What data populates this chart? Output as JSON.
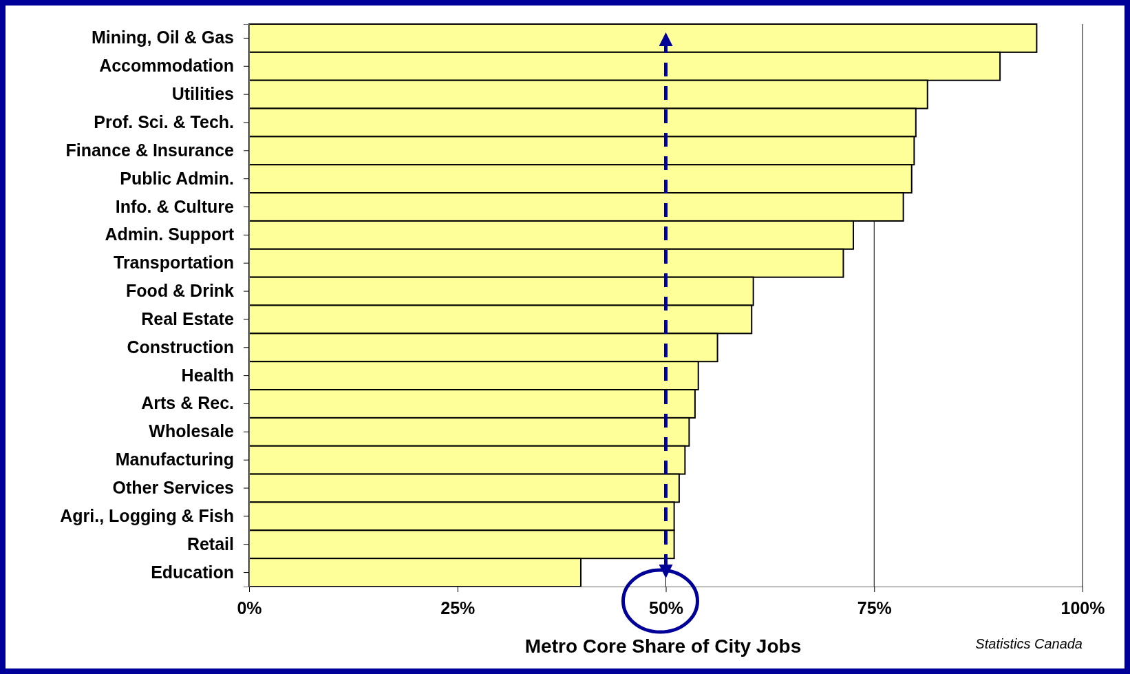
{
  "chart_data": {
    "type": "bar",
    "orientation": "horizontal",
    "xlabel": "Metro Core Share of City Jobs",
    "categories": [
      "Mining, Oil & Gas",
      "Accommodation",
      "Utilities",
      "Prof. Sci. & Tech.",
      "Finance & Insurance",
      "Public Admin.",
      "Info. & Culture",
      "Admin. Support",
      "Transportation",
      "Food & Drink",
      "Real Estate",
      "Construction",
      "Health",
      "Arts & Rec.",
      "Wholesale",
      "Manufacturing",
      "Other Services",
      "Agri., Logging & Fish",
      "Retail",
      "Education"
    ],
    "values": [
      94.5,
      90.1,
      81.4,
      80.0,
      79.8,
      79.5,
      78.5,
      72.5,
      71.3,
      60.5,
      60.3,
      56.2,
      53.9,
      53.5,
      52.8,
      52.3,
      51.6,
      51.0,
      51.0,
      39.8
    ],
    "color": "#ffff99",
    "xlim": [
      0,
      100
    ],
    "xticks": [
      {
        "value": 0,
        "label": "0%"
      },
      {
        "value": 25,
        "label": "25%"
      },
      {
        "value": 50,
        "label": "50%"
      },
      {
        "value": 75,
        "label": "75%"
      },
      {
        "value": 100,
        "label": "100%"
      }
    ],
    "grid": "x",
    "ref_lines": [
      {
        "axis": "x",
        "value": 50,
        "color": "#000099",
        "line_style": "dashed"
      }
    ],
    "annotations": [
      "Statistics Canada"
    ]
  }
}
